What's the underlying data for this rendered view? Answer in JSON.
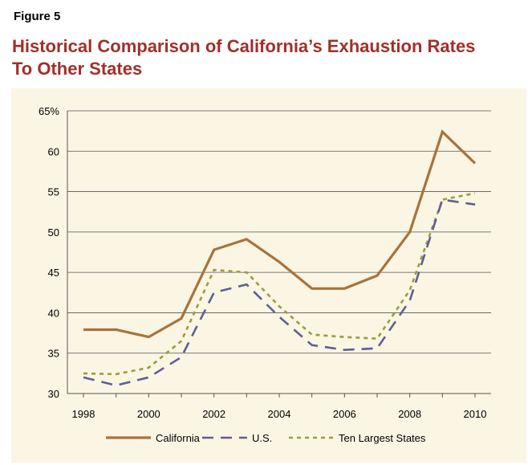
{
  "figure_label": "Figure 5",
  "title_line1": "Historical Comparison of California’s Exhaustion Rates",
  "title_line2": "To Other States",
  "colors": {
    "title": "#a0302a",
    "panel_background": "#fbf5e4",
    "california": "#a8733a",
    "us": "#5f5f92",
    "ten_largest": "#9c9c3c",
    "gridline": "#555555"
  },
  "chart_data": {
    "type": "line",
    "title": "Historical Comparison of California’s Exhaustion Rates To Other States",
    "xlabel": "",
    "ylabel": "",
    "x": [
      1998,
      1999,
      2000,
      2001,
      2002,
      2003,
      2004,
      2005,
      2006,
      2007,
      2008,
      2009,
      2010
    ],
    "xticks": [
      1998,
      2000,
      2002,
      2004,
      2006,
      2008,
      2010
    ],
    "xtick_labels": [
      "1998",
      "2000",
      "2002",
      "2004",
      "2006",
      "2008",
      "2010"
    ],
    "ylim": [
      30,
      65
    ],
    "yticks": [
      30,
      35,
      40,
      45,
      50,
      55,
      60,
      65
    ],
    "ytick_labels": [
      "30",
      "35",
      "40",
      "45",
      "50",
      "55",
      "60",
      "65%"
    ],
    "grid": true,
    "legend_position": "bottom",
    "series": [
      {
        "name": "California",
        "style": "solid",
        "values": [
          37.9,
          37.9,
          37.0,
          39.3,
          47.8,
          49.1,
          46.3,
          43.0,
          43.0,
          44.6,
          50.0,
          62.4,
          58.5
        ]
      },
      {
        "name": "U.S.",
        "style": "long-dash",
        "values": [
          32.0,
          31.0,
          32.0,
          34.5,
          42.5,
          43.5,
          39.5,
          36.0,
          35.4,
          35.6,
          41.5,
          54.0,
          53.4
        ]
      },
      {
        "name": "Ten Largest States",
        "style": "short-dash",
        "values": [
          32.5,
          32.4,
          33.2,
          36.5,
          45.3,
          45.0,
          40.8,
          37.3,
          37.0,
          36.8,
          42.8,
          54.0,
          54.8
        ]
      }
    ]
  }
}
